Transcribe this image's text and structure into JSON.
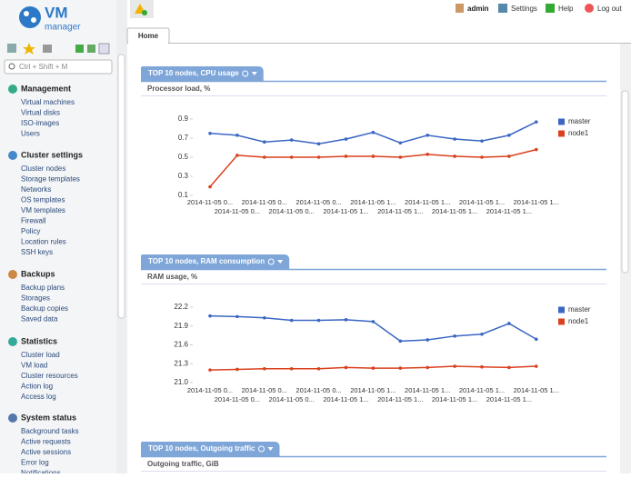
{
  "header": {
    "logo": "VM",
    "logo_sub": "manager",
    "user": "admin",
    "links": [
      "Settings",
      "Help",
      "Log out"
    ]
  },
  "tabs": [
    "Home"
  ],
  "sidebar": {
    "search_placeholder": "Ctrl + Shift + M",
    "sections": [
      {
        "title": "Management",
        "items": [
          "Virtual machines",
          "Virtual disks",
          "ISO-images",
          "Users"
        ]
      },
      {
        "title": "Cluster settings",
        "items": [
          "Cluster nodes",
          "Storage templates",
          "Networks",
          "OS templates",
          "VM templates",
          "Firewall",
          "Policy",
          "Location rules",
          "SSH keys"
        ]
      },
      {
        "title": "Backups",
        "items": [
          "Backup plans",
          "Storages",
          "Backup copies",
          "Saved data"
        ]
      },
      {
        "title": "Statistics",
        "items": [
          "Cluster load",
          "VM load",
          "Cluster resources",
          "Action log",
          "Access log"
        ]
      },
      {
        "title": "System status",
        "items": [
          "Background tasks",
          "Active requests",
          "Active sessions",
          "Error log",
          "Notifications"
        ]
      }
    ]
  },
  "panels": [
    {
      "title": "TOP 10 nodes, CPU usage",
      "subtitle": "Processor load, %"
    },
    {
      "title": "TOP 10 nodes, RAM consumption",
      "subtitle": "RAM usage, %"
    },
    {
      "title": "TOP 10 nodes, Outgoing traffic",
      "subtitle": "Outgoing traffic, GiB"
    }
  ],
  "chart_data": [
    {
      "type": "line",
      "categories": [
        "2014-11-05 0...",
        "2014-11-05 0...",
        "2014-11-05 0...",
        "2014-11-05 0...",
        "2014-11-05 0...",
        "2014-11-05 1...",
        "2014-11-05 1...",
        "2014-11-05 1...",
        "2014-11-05 1...",
        "2014-11-05 1...",
        "2014-11-05 1...",
        "2014-11-05 1...",
        "2014-11-05 1..."
      ],
      "series": [
        {
          "name": "master",
          "color": "#3a66c4",
          "values": [
            0.75,
            0.73,
            0.66,
            0.68,
            0.64,
            0.69,
            0.76,
            0.65,
            0.73,
            0.69,
            0.67,
            0.73,
            0.87
          ]
        },
        {
          "name": "node1",
          "color": "#d9401e",
          "values": [
            0.19,
            0.52,
            0.5,
            0.5,
            0.5,
            0.51,
            0.51,
            0.5,
            0.53,
            0.51,
            0.5,
            0.51,
            0.58
          ]
        }
      ],
      "ylim": [
        0.1,
        0.9
      ],
      "yticks": [
        0.1,
        0.3,
        0.5,
        0.7,
        0.9
      ],
      "legend": "right"
    },
    {
      "type": "line",
      "categories": [
        "2014-11-05 0...",
        "2014-11-05 0...",
        "2014-11-05 0...",
        "2014-11-05 0...",
        "2014-11-05 0...",
        "2014-11-05 1...",
        "2014-11-05 1...",
        "2014-11-05 1...",
        "2014-11-05 1...",
        "2014-11-05 1...",
        "2014-11-05 1...",
        "2014-11-05 1...",
        "2014-11-05 1..."
      ],
      "series": [
        {
          "name": "master",
          "color": "#3a66c4",
          "values": [
            22.06,
            22.05,
            22.03,
            21.99,
            21.99,
            22.0,
            21.97,
            21.66,
            21.68,
            21.74,
            21.77,
            21.94,
            21.69
          ]
        },
        {
          "name": "node1",
          "color": "#d9401e",
          "values": [
            21.2,
            21.21,
            21.22,
            21.22,
            21.22,
            21.24,
            21.23,
            21.23,
            21.24,
            21.26,
            21.25,
            21.24,
            21.26
          ]
        }
      ],
      "ylim": [
        21.0,
        22.2
      ],
      "yticks": [
        {
          "value": 21.0,
          "label": "21.0"
        },
        21.3,
        21.6,
        21.9,
        22.2
      ],
      "legend": "right"
    }
  ]
}
